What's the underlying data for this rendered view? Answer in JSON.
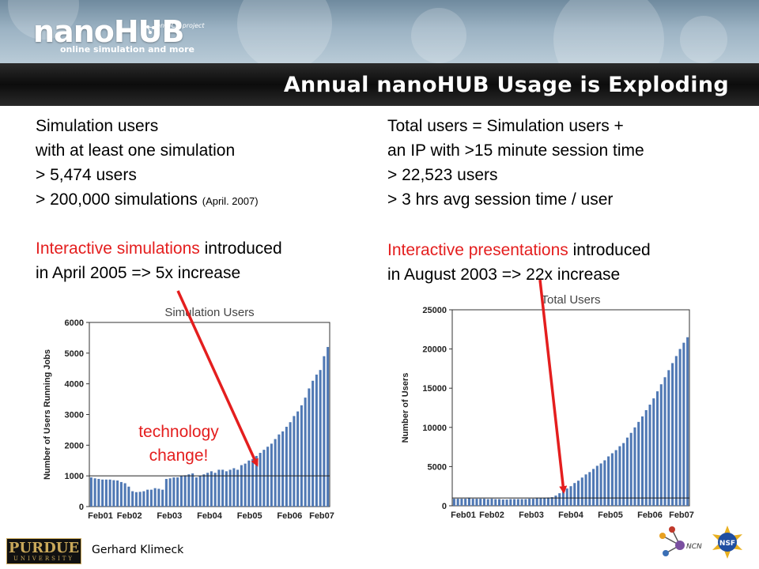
{
  "header": {
    "logo_text": "nanoHUB",
    "tagline": "online simulation and more",
    "ncn_tag": "an NCN project",
    "title": "Annual nanoHUB Usage is Exploding"
  },
  "left_column": {
    "line1": "Simulation users",
    "line2": "with at least one simulation",
    "line3": "> 5,474 users",
    "line4": "> 200,000 simulations",
    "line4_note": "(April. 2007)",
    "red_text": "Interactive simulations",
    "line5_rest": " introduced",
    "line6": "in April 2005  => 5x increase"
  },
  "right_column": {
    "line1": "Total users = Simulation users +",
    "line2": "an IP with >15 minute session time",
    "line3": "> 22,523 users",
    "line4": "> 3 hrs avg session time / user",
    "red_text": "Interactive presentations",
    "line5_rest": " introduced",
    "line6": "in August 2003  => 22x increase"
  },
  "annotation": {
    "line1": "technology",
    "line2": "change!"
  },
  "footer": {
    "university": "PURDUE",
    "university_sub": "UNIVERSITY",
    "author": "Gerhard Klimeck"
  },
  "colors": {
    "bar": "#4f78b4",
    "highlight": "#e41e1e"
  },
  "chart_data": [
    {
      "type": "bar",
      "title": "Simulation Users",
      "ylabel": "Number of Users Running Jobs",
      "xlabel": "",
      "ylim": [
        0,
        6000
      ],
      "yticks": [
        0,
        1000,
        2000,
        3000,
        4000,
        5000,
        6000
      ],
      "xticks": [
        "Feb01",
        "Feb02",
        "Feb03",
        "Feb04",
        "Feb05",
        "Feb06",
        "Feb07"
      ],
      "reference_line": 1000,
      "values": [
        950,
        920,
        900,
        880,
        880,
        880,
        860,
        850,
        800,
        760,
        650,
        500,
        470,
        480,
        500,
        550,
        550,
        600,
        580,
        550,
        900,
        920,
        950,
        950,
        1000,
        1020,
        1050,
        1080,
        950,
        1000,
        1050,
        1100,
        1150,
        1100,
        1200,
        1200,
        1150,
        1200,
        1250,
        1200,
        1350,
        1400,
        1500,
        1550,
        1650,
        1750,
        1850,
        1950,
        2050,
        2200,
        2350,
        2450,
        2600,
        2750,
        2950,
        3100,
        3300,
        3550,
        3850,
        4100,
        4300,
        4450,
        4900,
        5200
      ]
    },
    {
      "type": "bar",
      "title": "Total Users",
      "ylabel": "Number of Users",
      "xlabel": "",
      "ylim": [
        0,
        25000
      ],
      "yticks": [
        0,
        5000,
        10000,
        15000,
        20000,
        25000
      ],
      "xticks": [
        "Feb01",
        "Feb02",
        "Feb03",
        "Feb04",
        "Feb05",
        "Feb06",
        "Feb07"
      ],
      "reference_line": 1000,
      "values": [
        900,
        900,
        900,
        900,
        950,
        900,
        900,
        900,
        900,
        850,
        900,
        850,
        850,
        800,
        800,
        850,
        850,
        850,
        850,
        850,
        900,
        900,
        950,
        950,
        1000,
        1050,
        1100,
        1300,
        1600,
        1900,
        2200,
        2500,
        2900,
        3200,
        3600,
        4000,
        4300,
        4700,
        5100,
        5400,
        5800,
        6300,
        6700,
        7100,
        7600,
        8000,
        8700,
        9300,
        10000,
        10700,
        11400,
        12200,
        12900,
        13700,
        14600,
        15500,
        16400,
        17300,
        18200,
        19100,
        20000,
        20800,
        21500
      ]
    }
  ]
}
